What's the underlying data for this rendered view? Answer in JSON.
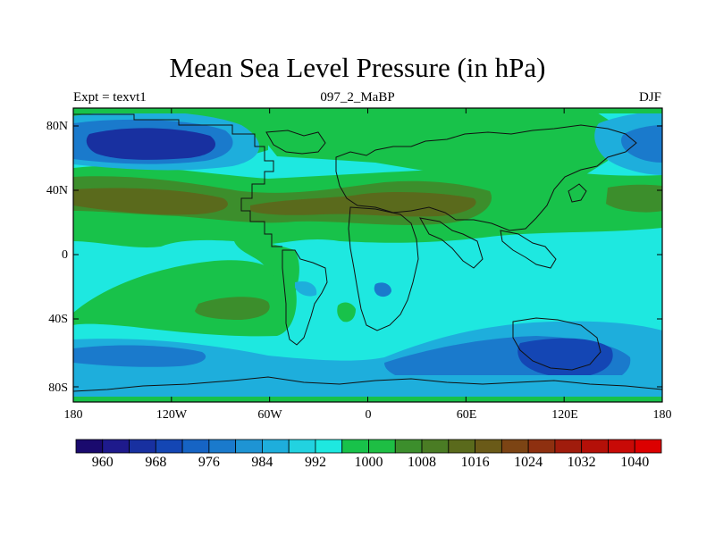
{
  "title": "Mean Sea Level Pressure (in hPa)",
  "subtitle_left": "Expt = texvt1",
  "subtitle_center": "097_2_MaBP",
  "subtitle_right": "DJF",
  "lat_ticks": [
    "80N",
    "40N",
    "0",
    "40S",
    "80S"
  ],
  "lon_ticks": [
    "180",
    "120W",
    "60W",
    "0",
    "60E",
    "120E",
    "180"
  ],
  "colorbar": {
    "labels": [
      "960",
      "968",
      "976",
      "984",
      "992",
      "1000",
      "1008",
      "1016",
      "1024",
      "1032",
      "1040"
    ],
    "colors": [
      "#1a0a6e",
      "#1e1a8c",
      "#1830a0",
      "#1446b4",
      "#1664c4",
      "#1a7acc",
      "#1e94d4",
      "#1eaedc",
      "#22d2e0",
      "#1ee8e0",
      "#18c24a",
      "#1ebe44",
      "#3c8e2c",
      "#4a7c24",
      "#5a6a1c",
      "#6a5a18",
      "#7c4414",
      "#8e3010",
      "#a01c0c",
      "#b41008",
      "#c80a06",
      "#dc0000"
    ]
  },
  "colors": {
    "ocean_low": "#1ee8e0",
    "mid_blue": "#1eaedc",
    "deep_blue": "#1a7acc",
    "darkest_blue": "#1446b4",
    "navy": "#1830a0",
    "green": "#18c24a",
    "olive_green": "#3c8e2c",
    "brown": "#5a6a1c",
    "coast_line": "#111111"
  }
}
